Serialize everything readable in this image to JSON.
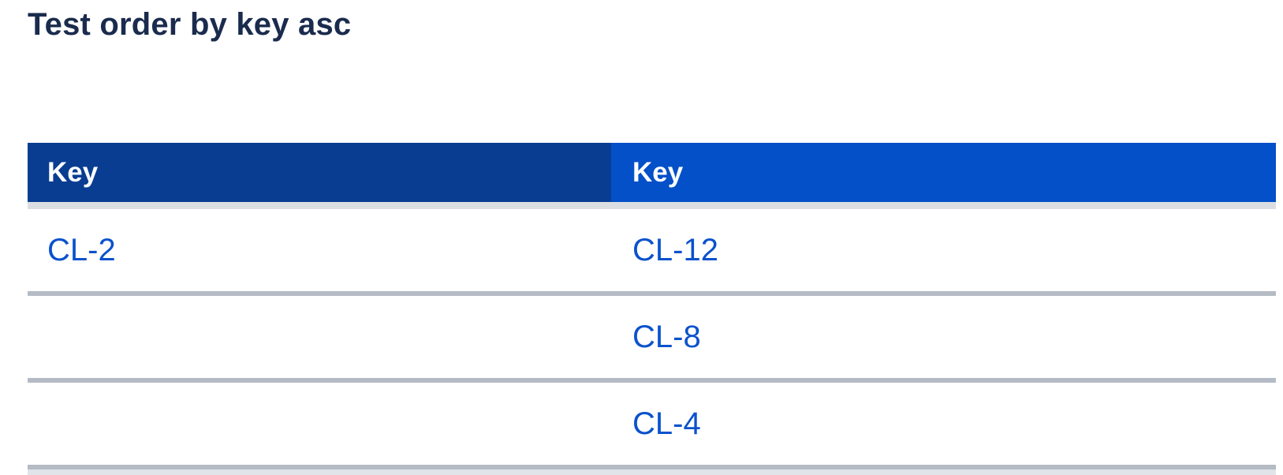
{
  "page": {
    "title": "Test order by key asc"
  },
  "tables": {
    "left": {
      "header": {
        "label": "Key"
      },
      "rows": [
        {
          "key": "CL-2"
        },
        {
          "key": ""
        },
        {
          "key": ""
        }
      ]
    },
    "right": {
      "header": {
        "label": "Key"
      },
      "rows": [
        {
          "key": "CL-12"
        },
        {
          "key": "CL-8"
        },
        {
          "key": "CL-4"
        }
      ]
    }
  },
  "colors": {
    "title_text": "#1A2B4D",
    "left_header_bg": "#093D92",
    "right_header_bg": "#0450C8",
    "header_text": "#FFFFFF",
    "link_text": "#0B52CD",
    "header_underline": "#DADEE3",
    "row_divider": "#B5BBC4"
  }
}
